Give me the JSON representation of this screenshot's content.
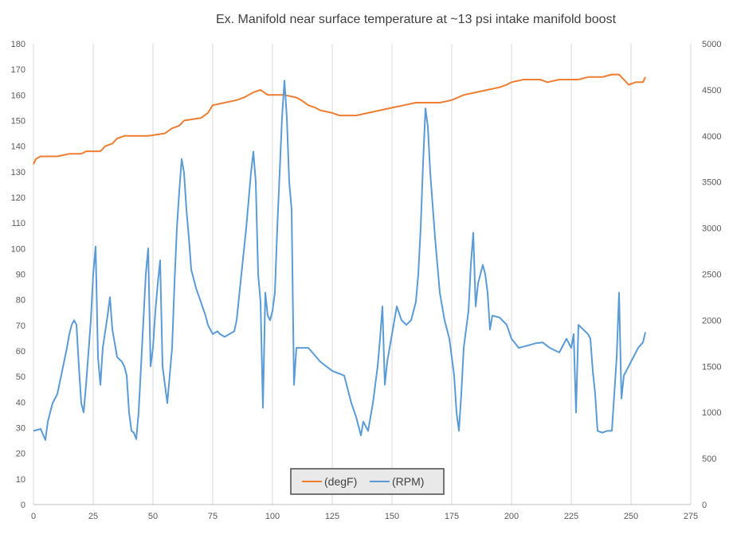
{
  "chart_data": {
    "type": "line",
    "title": "Ex. Manifold near surface temperature at ~13 psi intake manifold boost",
    "x_axis": {
      "min": 0,
      "max": 275,
      "ticks": [
        0,
        25,
        50,
        75,
        100,
        125,
        150,
        175,
        200,
        225,
        250,
        275
      ]
    },
    "y_axis_left": {
      "min": 0,
      "max": 180,
      "ticks": [
        0,
        10,
        20,
        30,
        40,
        50,
        60,
        70,
        80,
        90,
        100,
        110,
        120,
        130,
        140,
        150,
        160,
        170,
        180
      ]
    },
    "y_axis_right": {
      "min": 0,
      "max": 5000,
      "ticks": [
        0,
        500,
        1000,
        1500,
        2000,
        2500,
        3000,
        3500,
        4000,
        4500,
        5000
      ]
    },
    "grid": "vertical",
    "legend_position": "bottom",
    "series": [
      {
        "name": "(degF)",
        "axis": "left",
        "color": "#ED7D31",
        "points": [
          [
            0,
            133
          ],
          [
            1,
            135
          ],
          [
            3,
            136
          ],
          [
            10,
            136
          ],
          [
            15,
            137
          ],
          [
            20,
            137
          ],
          [
            22,
            138
          ],
          [
            28,
            138
          ],
          [
            30,
            140
          ],
          [
            33,
            141
          ],
          [
            35,
            143
          ],
          [
            38,
            144
          ],
          [
            48,
            144
          ],
          [
            55,
            145
          ],
          [
            58,
            147
          ],
          [
            61,
            148
          ],
          [
            63,
            150
          ],
          [
            70,
            151
          ],
          [
            73,
            153
          ],
          [
            75,
            156
          ],
          [
            80,
            157
          ],
          [
            85,
            158
          ],
          [
            88,
            159
          ],
          [
            92,
            161
          ],
          [
            95,
            162
          ],
          [
            98,
            160
          ],
          [
            105,
            160
          ],
          [
            110,
            159
          ],
          [
            112,
            158
          ],
          [
            115,
            156
          ],
          [
            118,
            155
          ],
          [
            120,
            154
          ],
          [
            125,
            153
          ],
          [
            128,
            152
          ],
          [
            135,
            152
          ],
          [
            140,
            153
          ],
          [
            145,
            154
          ],
          [
            150,
            155
          ],
          [
            155,
            156
          ],
          [
            160,
            157
          ],
          [
            165,
            157
          ],
          [
            170,
            157
          ],
          [
            175,
            158
          ],
          [
            180,
            160
          ],
          [
            185,
            161
          ],
          [
            190,
            162
          ],
          [
            195,
            163
          ],
          [
            198,
            164
          ],
          [
            200,
            165
          ],
          [
            205,
            166
          ],
          [
            212,
            166
          ],
          [
            215,
            165
          ],
          [
            220,
            166
          ],
          [
            228,
            166
          ],
          [
            232,
            167
          ],
          [
            238,
            167
          ],
          [
            242,
            168
          ],
          [
            245,
            168
          ],
          [
            247,
            166
          ],
          [
            249,
            164
          ],
          [
            252,
            165
          ],
          [
            255,
            165
          ],
          [
            256,
            167
          ]
        ]
      },
      {
        "name": "(RPM)",
        "axis": "right",
        "color": "#5B9BD5",
        "points": [
          [
            0,
            800
          ],
          [
            3,
            820
          ],
          [
            5,
            700
          ],
          [
            6,
            900
          ],
          [
            8,
            1100
          ],
          [
            10,
            1200
          ],
          [
            12,
            1450
          ],
          [
            14,
            1700
          ],
          [
            15,
            1850
          ],
          [
            16,
            1950
          ],
          [
            17,
            2000
          ],
          [
            18,
            1950
          ],
          [
            19,
            1500
          ],
          [
            20,
            1100
          ],
          [
            21,
            1000
          ],
          [
            22,
            1300
          ],
          [
            24,
            2000
          ],
          [
            25,
            2500
          ],
          [
            26,
            2800
          ],
          [
            27,
            1600
          ],
          [
            28,
            1300
          ],
          [
            29,
            1700
          ],
          [
            31,
            2050
          ],
          [
            32,
            2250
          ],
          [
            33,
            1900
          ],
          [
            35,
            1600
          ],
          [
            37,
            1550
          ],
          [
            38,
            1500
          ],
          [
            39,
            1400
          ],
          [
            40,
            1000
          ],
          [
            41,
            800
          ],
          [
            42,
            780
          ],
          [
            43,
            710
          ],
          [
            44,
            1000
          ],
          [
            45,
            1500
          ],
          [
            46,
            2000
          ],
          [
            47,
            2500
          ],
          [
            48,
            2780
          ],
          [
            49,
            1500
          ],
          [
            50,
            1700
          ],
          [
            51,
            2100
          ],
          [
            52,
            2400
          ],
          [
            53,
            2650
          ],
          [
            54,
            1500
          ],
          [
            55,
            1300
          ],
          [
            56,
            1100
          ],
          [
            58,
            1700
          ],
          [
            59,
            2400
          ],
          [
            60,
            3000
          ],
          [
            61,
            3400
          ],
          [
            62,
            3750
          ],
          [
            63,
            3600
          ],
          [
            64,
            3200
          ],
          [
            65,
            2900
          ],
          [
            66,
            2550
          ],
          [
            68,
            2350
          ],
          [
            70,
            2200
          ],
          [
            72,
            2050
          ],
          [
            73,
            1950
          ],
          [
            75,
            1850
          ],
          [
            77,
            1880
          ],
          [
            78,
            1850
          ],
          [
            80,
            1820
          ],
          [
            82,
            1850
          ],
          [
            84,
            1880
          ],
          [
            85,
            2000
          ],
          [
            87,
            2500
          ],
          [
            89,
            3000
          ],
          [
            91,
            3600
          ],
          [
            92,
            3830
          ],
          [
            93,
            3500
          ],
          [
            94,
            2500
          ],
          [
            95,
            2200
          ],
          [
            96,
            1050
          ],
          [
            97,
            2300
          ],
          [
            98,
            2050
          ],
          [
            99,
            2000
          ],
          [
            100,
            2100
          ],
          [
            101,
            2300
          ],
          [
            102,
            3000
          ],
          [
            103,
            3600
          ],
          [
            104,
            4200
          ],
          [
            105,
            4600
          ],
          [
            106,
            4200
          ],
          [
            107,
            3500
          ],
          [
            108,
            3200
          ],
          [
            109,
            1300
          ],
          [
            110,
            1700
          ],
          [
            115,
            1700
          ],
          [
            120,
            1550
          ],
          [
            125,
            1450
          ],
          [
            130,
            1400
          ],
          [
            131,
            1300
          ],
          [
            133,
            1100
          ],
          [
            135,
            950
          ],
          [
            137,
            750
          ],
          [
            138,
            900
          ],
          [
            140,
            800
          ],
          [
            142,
            1100
          ],
          [
            144,
            1500
          ],
          [
            145,
            1800
          ],
          [
            146,
            2150
          ],
          [
            147,
            1300
          ],
          [
            148,
            1550
          ],
          [
            150,
            1850
          ],
          [
            152,
            2150
          ],
          [
            154,
            2000
          ],
          [
            156,
            1950
          ],
          [
            158,
            2000
          ],
          [
            160,
            2200
          ],
          [
            161,
            2500
          ],
          [
            162,
            3000
          ],
          [
            163,
            3700
          ],
          [
            164,
            4300
          ],
          [
            165,
            4100
          ],
          [
            166,
            3600
          ],
          [
            168,
            2900
          ],
          [
            170,
            2300
          ],
          [
            172,
            2000
          ],
          [
            174,
            1800
          ],
          [
            176,
            1400
          ],
          [
            177,
            1000
          ],
          [
            178,
            800
          ],
          [
            179,
            1200
          ],
          [
            180,
            1700
          ],
          [
            182,
            2100
          ],
          [
            183,
            2600
          ],
          [
            184,
            2950
          ],
          [
            185,
            2150
          ],
          [
            186,
            2400
          ],
          [
            188,
            2600
          ],
          [
            189,
            2500
          ],
          [
            190,
            2300
          ],
          [
            191,
            1900
          ],
          [
            192,
            2050
          ],
          [
            195,
            2030
          ],
          [
            198,
            1950
          ],
          [
            200,
            1800
          ],
          [
            203,
            1700
          ],
          [
            206,
            1720
          ],
          [
            210,
            1750
          ],
          [
            213,
            1760
          ],
          [
            216,
            1700
          ],
          [
            220,
            1650
          ],
          [
            222,
            1750
          ],
          [
            223,
            1800
          ],
          [
            225,
            1700
          ],
          [
            226,
            1850
          ],
          [
            227,
            1000
          ],
          [
            228,
            1950
          ],
          [
            230,
            1900
          ],
          [
            232,
            1850
          ],
          [
            233,
            1800
          ],
          [
            234,
            1450
          ],
          [
            235,
            1200
          ],
          [
            236,
            800
          ],
          [
            238,
            780
          ],
          [
            240,
            800
          ],
          [
            242,
            800
          ],
          [
            243,
            1200
          ],
          [
            244,
            1600
          ],
          [
            245,
            2300
          ],
          [
            246,
            1150
          ],
          [
            247,
            1400
          ],
          [
            250,
            1550
          ],
          [
            253,
            1700
          ],
          [
            255,
            1760
          ],
          [
            256,
            1870
          ]
        ]
      }
    ]
  }
}
